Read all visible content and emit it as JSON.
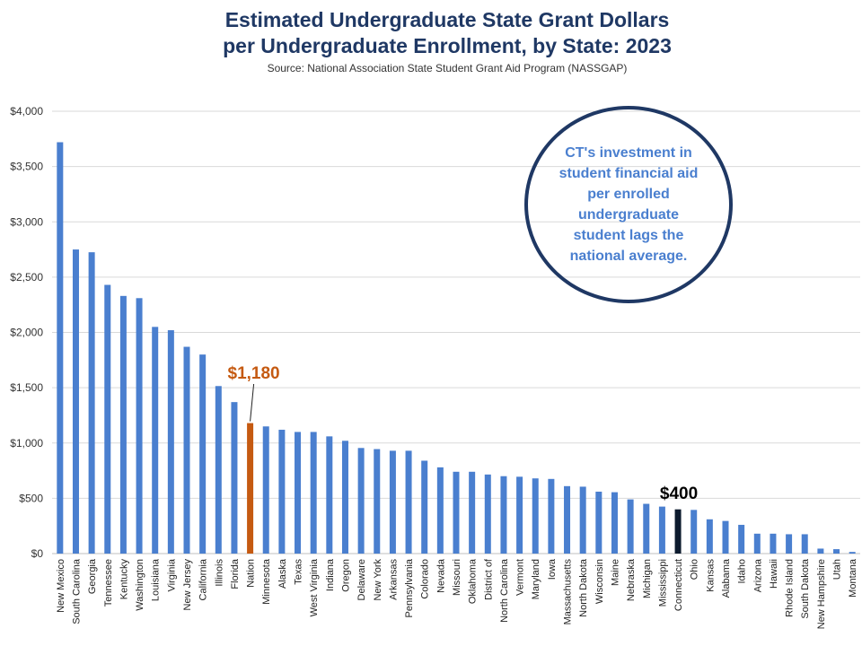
{
  "chart_data": {
    "type": "bar",
    "title_line1": "Estimated Undergraduate State Grant Dollars",
    "title_line2": "per Undergraduate Enrollment, by State: 2023",
    "subtitle": "Source: National Association State Student Grant Aid Program (NASSGAP)",
    "categories": [
      "New Mexico",
      "South Carolina",
      "Georgia",
      "Tennessee",
      "Kentucky",
      "Washington",
      "Louisiana",
      "Virginia",
      "New Jersey",
      "California",
      "Illinois",
      "Florida",
      "Nation",
      "Minnesota",
      "Alaska",
      "Texas",
      "West Virginia",
      "Indiana",
      "Oregon",
      "Delaware",
      "New York",
      "Arkansas",
      "Pennsylvania",
      "Colorado",
      "Nevada",
      "Missouri",
      "Oklahoma",
      "District of",
      "North Carolina",
      "Vermont",
      "Maryland",
      "Iowa",
      "Massachusetts",
      "North Dakota",
      "Wisconsin",
      "Maine",
      "Nebraska",
      "Michigan",
      "Mississippi",
      "Connecticut",
      "Ohio",
      "Kansas",
      "Alabama",
      "Idaho",
      "Arizona",
      "Hawaii",
      "Rhode Island",
      "South Dakota",
      "New Hampshire",
      "Utah",
      "Montana"
    ],
    "values": [
      3720,
      2750,
      2725,
      2430,
      2330,
      2310,
      2050,
      2020,
      1870,
      1800,
      1515,
      1370,
      1180,
      1150,
      1120,
      1100,
      1100,
      1060,
      1020,
      955,
      945,
      930,
      930,
      840,
      780,
      740,
      740,
      715,
      700,
      695,
      680,
      675,
      610,
      605,
      560,
      555,
      490,
      450,
      425,
      400,
      395,
      310,
      295,
      260,
      180,
      180,
      175,
      175,
      45,
      40,
      15
    ],
    "ylim": [
      0,
      4000
    ],
    "yticks": [
      "$0",
      "$500",
      "$1,000",
      "$1,500",
      "$2,000",
      "$2,500",
      "$3,000",
      "$3,500",
      "$4,000"
    ],
    "grid": true,
    "colors": {
      "default": "#4a7fcf",
      "nation": "#c55a11",
      "connecticut": "#0d1b2e",
      "grid": "#d9d9d9"
    },
    "highlight_labels": {
      "nation": "$1,180",
      "connecticut": "$400"
    },
    "annotation": "CT's investment in student financial aid per enrolled undergraduate student lags the national average."
  }
}
